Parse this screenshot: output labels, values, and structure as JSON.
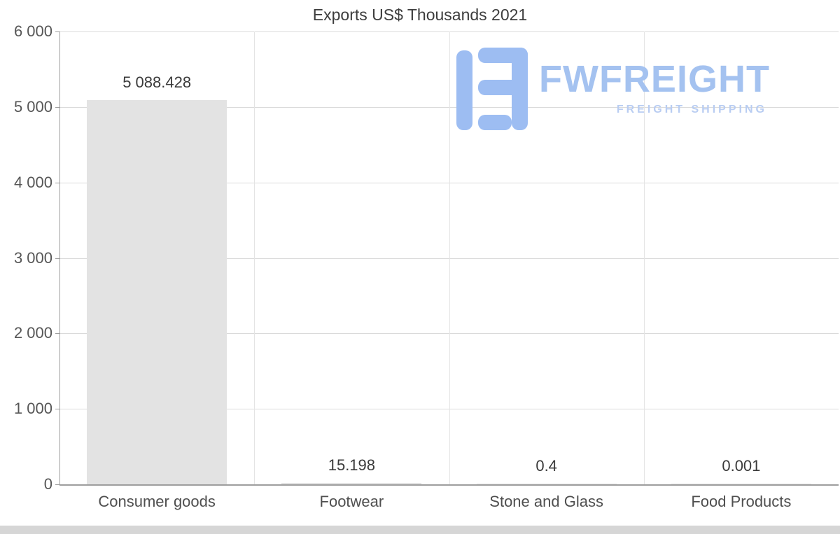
{
  "title": "Exports US$ Thousands 2021",
  "chart_data": {
    "type": "bar",
    "title": "Exports US$ Thousands 2021",
    "categories": [
      "Consumer goods",
      "Footwear",
      "Stone and Glass",
      "Food Products"
    ],
    "values": [
      5088.428,
      15.198,
      0.4,
      0.001
    ],
    "value_labels": [
      "5 088.428",
      "15.198",
      "0.4",
      "0.001"
    ],
    "xlabel": "",
    "ylabel": "",
    "ylim": [
      0,
      6000
    ],
    "ytick_values": [
      0,
      1000,
      2000,
      3000,
      4000,
      5000,
      6000
    ],
    "ytick_labels": [
      "0",
      "1 000",
      "2 000",
      "3 000",
      "4 000",
      "5 000",
      "6 000"
    ],
    "grid": true,
    "legend": "none",
    "bar_color": "#e3e3e3"
  },
  "logo": {
    "brand": "FWFREIGHT",
    "tagline": "FREIGHT SHIPPING",
    "mark_color": "#9dbdf2",
    "brand_color": "#a4c2f0",
    "tagline_color": "#b9cdf2"
  }
}
